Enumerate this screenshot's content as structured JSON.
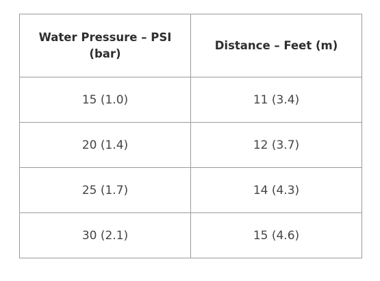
{
  "table": {
    "headers": [
      "Water Pressure – PSI (bar)",
      "Distance – Feet (m)"
    ],
    "rows": [
      [
        "15 (1.0)",
        "11 (3.4)"
      ],
      [
        "20 (1.4)",
        "12 (3.7)"
      ],
      [
        "25 (1.7)",
        "14 (4.3)"
      ],
      [
        "30 (2.1)",
        "15 (4.6)"
      ]
    ]
  }
}
